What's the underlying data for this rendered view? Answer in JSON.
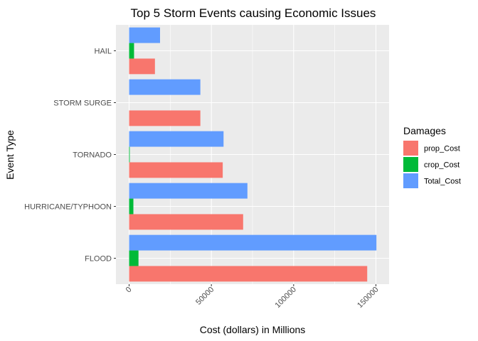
{
  "chart_data": {
    "type": "bar",
    "orientation": "horizontal",
    "title": "Top 5 Storm Events causing Economic Issues",
    "xlabel": "Cost (dollars) in Millions",
    "ylabel": "Event Type",
    "categories": [
      "FLOOD",
      "HURRICANE/TYPHOON",
      "TORNADO",
      "STORM SURGE",
      "HAIL"
    ],
    "series": [
      {
        "name": "prop_Cost",
        "color": "#F8766D",
        "values": [
          144700,
          69300,
          56900,
          43300,
          15700
        ]
      },
      {
        "name": "crop_Cost",
        "color": "#00BA38",
        "values": [
          5700,
          2600,
          400,
          0,
          3000
        ]
      },
      {
        "name": "Total_Cost",
        "color": "#619CFF",
        "values": [
          150300,
          71900,
          57400,
          43300,
          18800
        ]
      }
    ],
    "xlim": [
      -8000,
      158000
    ],
    "xticks": [
      0,
      50000,
      100000,
      150000
    ],
    "xtick_labels": [
      "0",
      "50000",
      "100000",
      "150000"
    ],
    "legend": {
      "title": "Damages",
      "position": "right"
    },
    "grid": true
  }
}
